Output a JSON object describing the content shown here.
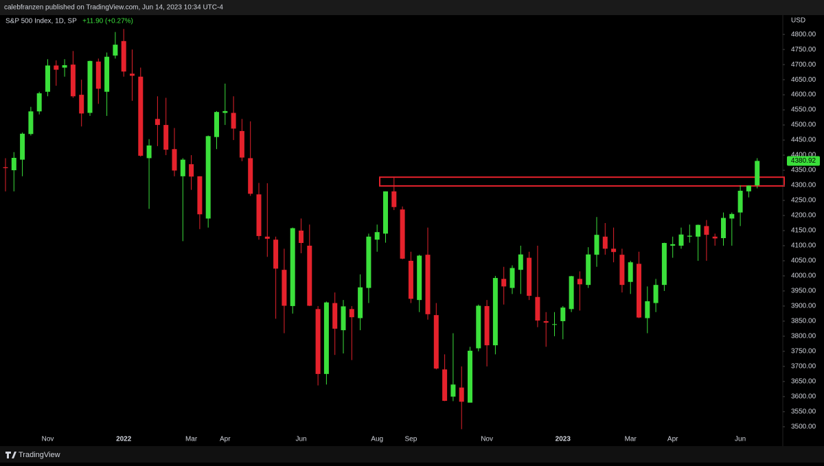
{
  "header": {
    "published": "calebfranzen published on TradingView.com, Jun 14, 2023 10:34 UTC-4"
  },
  "footer": {
    "brand": "TradingView"
  },
  "chart_data": {
    "type": "candlestick",
    "title": "S&P 500 Index, 1D, SP",
    "change": "+11.90 (+0.27%)",
    "currency": "USD",
    "up_color": "#3be03b",
    "down_color": "#e5222c",
    "categories": [
      null,
      null,
      null,
      null,
      null,
      "Nov",
      null,
      null,
      null,
      null,
      null,
      null,
      null,
      null,
      "2022",
      null,
      null,
      null,
      null,
      null,
      null,
      null,
      "Mar",
      null,
      null,
      null,
      "Apr",
      null,
      null,
      null,
      null,
      null,
      null,
      null,
      null,
      "Jun",
      null,
      null,
      null,
      null,
      null,
      null,
      null,
      null,
      "Aug",
      null,
      null,
      null,
      "Sep",
      null,
      null,
      null,
      null,
      null,
      null,
      null,
      null,
      "Nov",
      null,
      null,
      null,
      null,
      null,
      null,
      null,
      null,
      "2023",
      null,
      null,
      null,
      null,
      null,
      null,
      null,
      "Mar",
      null,
      null,
      null,
      null,
      "Apr",
      null,
      null,
      null,
      null,
      null,
      null,
      null,
      "Jun",
      null,
      null
    ],
    "open": [
      4360,
      4350,
      4385,
      4470,
      4545,
      4610,
      4697,
      4690,
      4700,
      4600,
      4540,
      4710,
      4610,
      4730,
      4778,
      4670,
      4660,
      4390,
      4520,
      4500,
      4420,
      4330,
      4370,
      4330,
      4190,
      4460,
      4540,
      4540,
      4480,
      4390,
      4270,
      4130,
      4120,
      4020,
      3900,
      4150,
      4100,
      3890,
      3675,
      3910,
      3820,
      3890,
      3860,
      3960,
      4120,
      4140,
      4280,
      4220,
      4050,
      3920,
      4070,
      3870,
      3690,
      3600,
      3630,
      3580,
      3760,
      3900,
      3770,
      3990,
      3960,
      4020,
      4060,
      3930,
      3850,
      3840,
      3850,
      3890,
      3990,
      3970,
      4070,
      4130,
      4090,
      4070,
      3980,
      4040,
      3860,
      3910,
      3970,
      4100,
      4100,
      4130,
      4130,
      4165,
      4130,
      4125,
      4190,
      4210,
      4280,
      4300
    ],
    "high": [
      4390,
      4410,
      4475,
      4560,
      4610,
      4718,
      4714,
      4718,
      4745,
      4650,
      4713,
      4720,
      4740,
      4808,
      4818,
      4750,
      4690,
      4453,
      4595,
      4590,
      4490,
      4390,
      4400,
      4330,
      4465,
      4546,
      4637,
      4595,
      4520,
      4512,
      4308,
      4307,
      4130,
      4090,
      4160,
      4190,
      4170,
      3900,
      3915,
      3945,
      3920,
      3900,
      4005,
      4140,
      4170,
      4280,
      4325,
      4230,
      4080,
      4070,
      4160,
      3910,
      3740,
      3810,
      3700,
      3765,
      3905,
      3920,
      4000,
      4030,
      4035,
      4100,
      4080,
      4100,
      3880,
      3880,
      3900,
      4000,
      4015,
      4095,
      4195,
      4175,
      4160,
      4090,
      4050,
      4080,
      3965,
      3990,
      4110,
      4130,
      4160,
      4170,
      4170,
      4185,
      4140,
      4210,
      4210,
      4300,
      4300,
      4390
    ],
    "low": [
      4280,
      4280,
      4330,
      4465,
      4535,
      4595,
      4630,
      4660,
      4590,
      4495,
      4530,
      4570,
      4530,
      4720,
      4660,
      4580,
      4395,
      4222,
      4430,
      4400,
      4330,
      4115,
      4285,
      4155,
      4160,
      4420,
      4500,
      4450,
      4380,
      4265,
      4120,
      4063,
      3858,
      3810,
      3875,
      4075,
      3900,
      3637,
      3640,
      3738,
      3743,
      3721,
      3820,
      3910,
      4080,
      4110,
      4218,
      4055,
      3910,
      3880,
      3855,
      3690,
      3585,
      3585,
      3492,
      3580,
      3750,
      3700,
      3740,
      3905,
      3940,
      3940,
      3920,
      3830,
      3765,
      3800,
      3790,
      3880,
      3885,
      3960,
      4030,
      4070,
      4045,
      3945,
      3940,
      3860,
      3810,
      3880,
      3950,
      4060,
      4090,
      4110,
      4050,
      4050,
      4100,
      4100,
      4100,
      4165,
      4260,
      4290
    ],
    "close": [
      4357,
      4391,
      4471,
      4545,
      4605,
      4697,
      4683,
      4698,
      4595,
      4538,
      4712,
      4620,
      4726,
      4766,
      4677,
      4663,
      4398,
      4432,
      4500,
      4418,
      4349,
      4385,
      4329,
      4204,
      4463,
      4543,
      4546,
      4488,
      4392,
      4272,
      4132,
      4123,
      4024,
      3901,
      4158,
      4109,
      3901,
      3675,
      3912,
      3825,
      3899,
      3863,
      3962,
      4130,
      4145,
      4280,
      4228,
      4057,
      3924,
      4067,
      3873,
      3693,
      3586,
      3640,
      3583,
      3752,
      3901,
      3770,
      3993,
      3965,
      4026,
      4071,
      3934,
      3852,
      3845,
      3840,
      3895,
      3999,
      3972,
      4071,
      4136,
      4090,
      4079,
      3970,
      4045,
      3862,
      3916,
      3970,
      4109,
      4105,
      4137,
      4133,
      4169,
      4136,
      4124,
      4192,
      4205,
      4282,
      4299,
      4380.92
    ],
    "ylim": [
      3436,
      4864
    ],
    "yticks": [
      {
        "value": 3500,
        "label": "3500.00"
      },
      {
        "value": 3550,
        "label": "3550.00"
      },
      {
        "value": 3600,
        "label": "3600.00"
      },
      {
        "value": 3650,
        "label": "3650.00"
      },
      {
        "value": 3700,
        "label": "3700.00"
      },
      {
        "value": 3750,
        "label": "3750.00"
      },
      {
        "value": 3800,
        "label": "3800.00"
      },
      {
        "value": 3850,
        "label": "3850.00"
      },
      {
        "value": 3900,
        "label": "3900.00"
      },
      {
        "value": 3950,
        "label": "3950.00"
      },
      {
        "value": 4000,
        "label": "4000.00"
      },
      {
        "value": 4050,
        "label": "4050.00"
      },
      {
        "value": 4100,
        "label": "4100.00"
      },
      {
        "value": 4150,
        "label": "4150.00"
      },
      {
        "value": 4200,
        "label": "4200.00"
      },
      {
        "value": 4250,
        "label": "4250.00"
      },
      {
        "value": 4300,
        "label": "4300.00"
      },
      {
        "value": 4350,
        "label": "4350.00"
      },
      {
        "value": 4400,
        "label": "4400.00"
      },
      {
        "value": 4450,
        "label": "4450.00"
      },
      {
        "value": 4500,
        "label": "4500.00"
      },
      {
        "value": 4550,
        "label": "4550.00"
      },
      {
        "value": 4600,
        "label": "4600.00"
      },
      {
        "value": 4650,
        "label": "4650.00"
      },
      {
        "value": 4700,
        "label": "4700.00"
      },
      {
        "value": 4750,
        "label": "4750.00"
      },
      {
        "value": 4800,
        "label": "4800.00"
      }
    ],
    "zone": {
      "low": 4298,
      "high": 4327,
      "color": "#e5222c"
    }
  }
}
